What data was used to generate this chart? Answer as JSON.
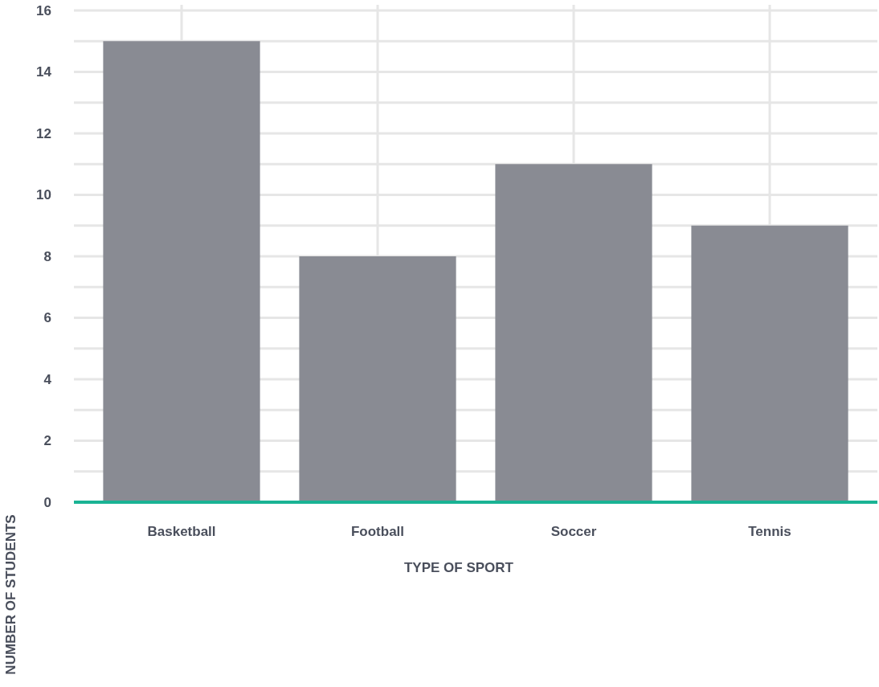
{
  "chart_data": {
    "type": "bar",
    "xlabel": "TYPE OF SPORT",
    "ylabel": "NUMBER OF STUDENTS",
    "categories": [
      "Basketball",
      "Football",
      "Soccer",
      "Tennis"
    ],
    "values": [
      15,
      8,
      11,
      9
    ],
    "color": "#898b93",
    "ylim": [
      0,
      16
    ],
    "yticks": [
      0,
      {
        "value": 1,
        "label": null
      },
      2,
      {
        "value": 3,
        "label": null
      },
      4,
      {
        "value": 5,
        "label": null
      },
      6,
      {
        "value": 7,
        "label": null
      },
      8,
      {
        "value": 9,
        "label": null
      },
      10,
      {
        "value": 11,
        "label": null
      },
      12,
      {
        "value": 13,
        "label": null
      },
      14,
      {
        "value": 15,
        "label": null
      },
      16
    ],
    "grid": true
  }
}
